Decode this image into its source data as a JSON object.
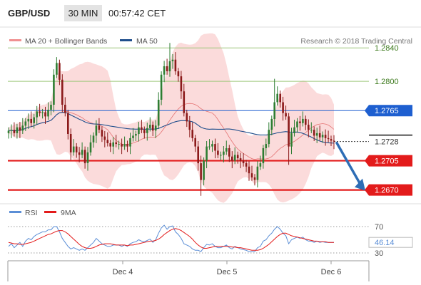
{
  "header": {
    "symbol": "GBP/USD",
    "timeframe": "30 MIN",
    "time": "00:57:42 CET"
  },
  "credit": "Research © 2018 Trading Central",
  "colors": {
    "candle_up": "#2e7d32",
    "candle_down": "#8b1a1a",
    "bollinger": "#f4a6a6",
    "ma50": "#1f4e8c",
    "support": "#e31b1b",
    "resistance_green": "#9dc67a",
    "resistance_blue": "#1e5fd0",
    "rsi": "#5b8ed6",
    "rsi_ma": "#e31b1b",
    "arrow": "#2d6db5"
  },
  "chart_data": [
    {
      "type": "candlestick",
      "title": "GBP/USD 30 MIN",
      "legend": [
        {
          "label": "MA 20 + Bollinger Bands",
          "color": "#f09090"
        },
        {
          "label": "MA 50",
          "color": "#1f4e8c"
        }
      ],
      "x_ticks": [
        "Dec 4",
        "Dec 5",
        "Dec 6"
      ],
      "ylim": [
        1.2662,
        1.2853
      ],
      "levels": [
        {
          "value": 1.284,
          "label": "1.2840",
          "kind": "resistance",
          "color": "#9dc67a"
        },
        {
          "value": 1.28,
          "label": "1.2800",
          "kind": "resistance",
          "color": "#9dc67a"
        },
        {
          "value": 1.2765,
          "label": "1.2765",
          "kind": "pivot",
          "color": "#1e5fd0"
        },
        {
          "value": 1.2728,
          "label": "1.2728",
          "kind": "last",
          "color": "#111111"
        },
        {
          "value": 1.2705,
          "label": "1.2705",
          "kind": "support",
          "color": "#e31b1b"
        },
        {
          "value": 1.267,
          "label": "1.2670",
          "kind": "support",
          "color": "#e31b1b"
        }
      ],
      "closes": [
        1.2741,
        1.2742,
        1.2738,
        1.2745,
        1.2741,
        1.2747,
        1.2752,
        1.2755,
        1.275,
        1.2757,
        1.2764,
        1.2762,
        1.2763,
        1.2758,
        1.2766,
        1.2772,
        1.2808,
        1.2822,
        1.2802,
        1.2772,
        1.2762,
        1.2737,
        1.2715,
        1.2722,
        1.2715,
        1.2712,
        1.2718,
        1.2702,
        1.2715,
        1.2727,
        1.2735,
        1.2747,
        1.2742,
        1.2734,
        1.273,
        1.2726,
        1.2722,
        1.2727,
        1.2725,
        1.2725,
        1.2722,
        1.2725,
        1.2722,
        1.2732,
        1.2735,
        1.2737,
        1.2745,
        1.2742,
        1.2738,
        1.2744,
        1.2748,
        1.2741,
        1.2747,
        1.2778,
        1.2808,
        1.2818,
        1.2812,
        1.2824,
        1.2826,
        1.2812,
        1.2806,
        1.2788,
        1.2762,
        1.2752,
        1.2742,
        1.2732,
        1.2722,
        1.2702,
        1.2682,
        1.2705,
        1.2722,
        1.2722,
        1.2725,
        1.2717,
        1.2712,
        1.2712,
        1.2716,
        1.272,
        1.271,
        1.2705,
        1.2712,
        1.2708,
        1.2705,
        1.2702,
        1.2698,
        1.269,
        1.2685,
        1.2682,
        1.2698,
        1.2702,
        1.272,
        1.2725,
        1.2742,
        1.2755,
        1.2775,
        1.2785,
        1.2775,
        1.2762,
        1.2758,
        1.2722,
        1.2738,
        1.2745,
        1.2752,
        1.275,
        1.2755,
        1.2748,
        1.2742,
        1.2742,
        1.2735,
        1.2738,
        1.2733,
        1.2736,
        1.2732,
        1.2731,
        1.2729,
        1.2728
      ],
      "rsi_panel": {
        "legend": [
          {
            "label": "RSI",
            "color": "#5b8ed6"
          },
          {
            "label": "9MA",
            "color": "#e31b1b"
          }
        ],
        "ylim": [
          30,
          70
        ],
        "levels": [
          70,
          30
        ],
        "tick_labels": [
          "70",
          "30"
        ],
        "last_value": "46.14",
        "rsi": [
          40,
          44,
          38,
          42,
          46,
          40,
          48,
          52,
          50,
          55,
          58,
          60,
          62,
          62,
          65,
          65,
          70,
          70,
          62,
          52,
          46,
          40,
          36,
          38,
          36,
          34,
          36,
          34,
          38,
          42,
          46,
          52,
          48,
          44,
          42,
          40,
          40,
          42,
          42,
          42,
          40,
          42,
          40,
          44,
          46,
          47,
          50,
          48,
          47,
          49,
          51,
          46,
          50,
          60,
          68,
          72,
          66,
          70,
          71,
          62,
          58,
          52,
          44,
          42,
          40,
          36,
          34,
          34,
          32,
          38,
          43,
          42,
          44,
          40,
          38,
          38,
          40,
          42,
          38,
          36,
          40,
          38,
          36,
          35,
          34,
          32,
          32,
          32,
          38,
          40,
          48,
          50,
          56,
          60,
          66,
          70,
          66,
          60,
          56,
          44,
          50,
          52,
          54,
          52,
          54,
          50,
          48,
          48,
          46,
          48,
          46,
          47,
          46,
          46,
          46,
          46
        ],
        "ma": [
          46,
          45,
          44,
          44,
          43,
          43,
          44,
          45,
          46,
          48,
          50,
          52,
          54,
          56,
          58,
          59,
          61,
          63,
          64,
          64,
          62,
          59,
          55,
          51,
          47,
          43,
          40,
          38,
          37,
          37,
          38,
          40,
          42,
          43,
          44,
          44,
          44,
          43,
          42,
          42,
          42,
          42,
          41,
          42,
          42,
          43,
          44,
          45,
          46,
          47,
          48,
          48,
          49,
          51,
          54,
          58,
          61,
          64,
          66,
          67,
          66,
          64,
          61,
          58,
          55,
          51,
          46,
          42,
          39,
          37,
          37,
          38,
          39,
          40,
          40,
          40,
          40,
          40,
          40,
          39,
          39,
          38,
          38,
          37,
          36,
          35,
          34,
          34,
          34,
          35,
          37,
          40,
          43,
          47,
          51,
          55,
          58,
          60,
          60,
          58,
          56,
          55,
          54,
          53,
          52,
          51,
          50,
          49,
          48,
          48,
          47,
          47,
          47,
          46,
          46,
          46
        ]
      }
    }
  ]
}
